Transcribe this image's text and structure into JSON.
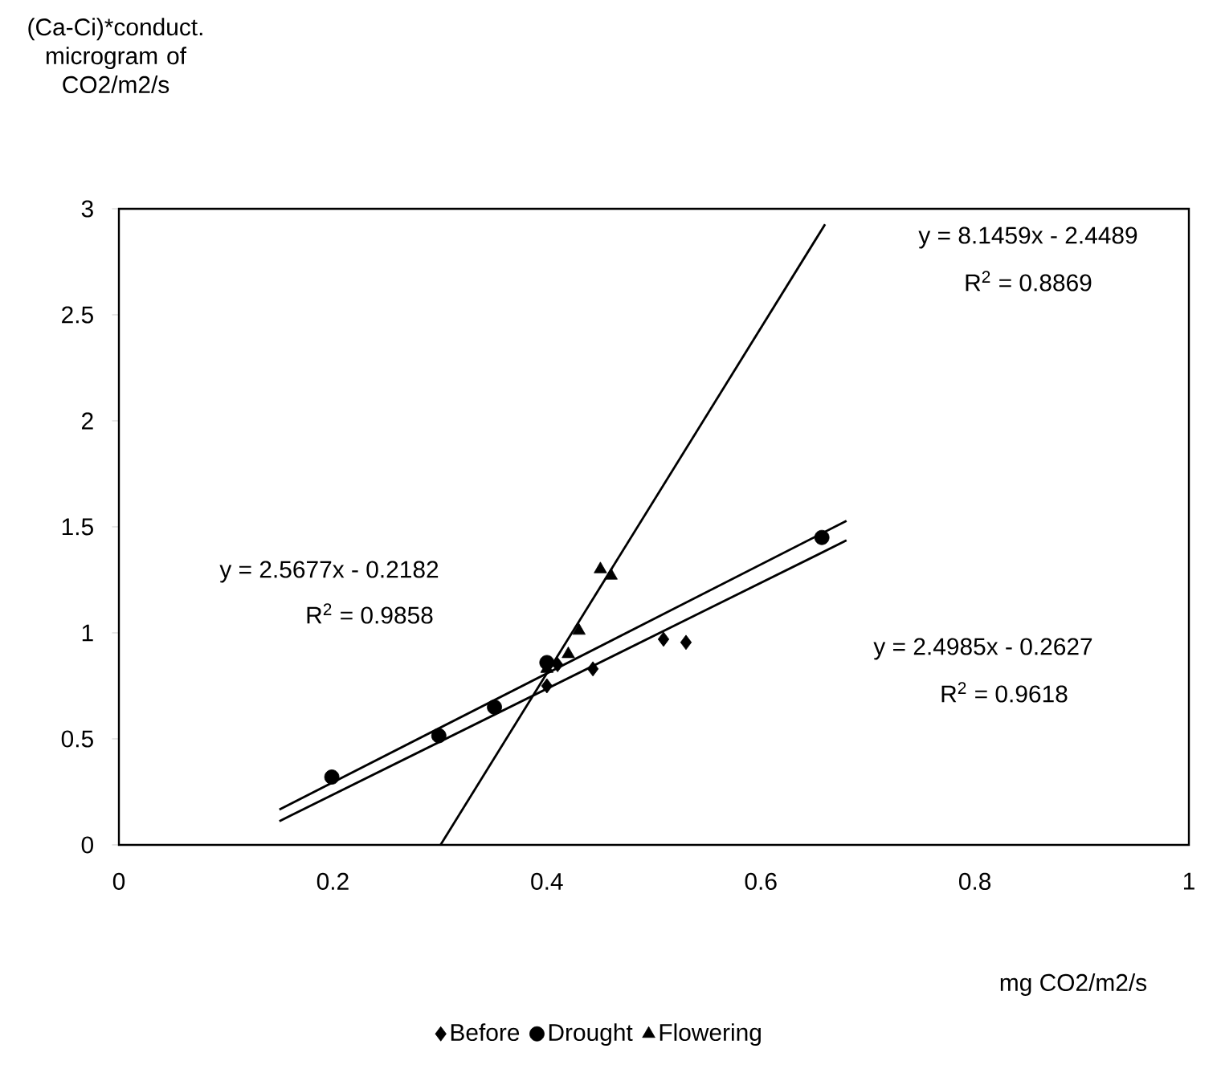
{
  "chart_data": {
    "type": "scatter",
    "ylabel": "(Ca-Ci)*conduct. microgram of CO2/m2/s",
    "xlabel": "mg CO2/m2/s",
    "xlim": [
      0,
      1
    ],
    "xticks": [
      0,
      0.2,
      0.4,
      0.6,
      0.8,
      1
    ],
    "ylim": [
      0,
      3
    ],
    "yticks": [
      0,
      0.5,
      1,
      1.5,
      2,
      2.5,
      3
    ],
    "legend": "bottom",
    "grid": false,
    "series": [
      {
        "name": "Before",
        "color": "#000000",
        "marker": "diamond",
        "x": [
          0.4,
          0.41,
          0.443,
          0.509,
          0.53
        ],
        "values": [
          0.75,
          0.85,
          0.83,
          0.97,
          0.955
        ]
      },
      {
        "name": "Drought",
        "color": "#000000",
        "marker": "circle",
        "x": [
          0.199,
          0.299,
          0.351,
          0.4,
          0.657
        ],
        "values": [
          0.32,
          0.515,
          0.65,
          0.86,
          1.45
        ]
      },
      {
        "name": "Flowering",
        "color": "#000000",
        "marker": "triangle",
        "x": [
          0.4,
          0.42,
          0.43,
          0.45,
          0.46
        ],
        "values": [
          0.83,
          0.9,
          1.01,
          1.3,
          1.27
        ]
      },
      {
        "type": "line",
        "color": "#000000",
        "x": [
          0.15,
          0.68
        ],
        "values": [
          0.112,
          1.436
        ]
      },
      {
        "type": "line",
        "color": "#000000",
        "x": [
          0.15,
          0.68
        ],
        "values": [
          0.167,
          1.528
        ]
      },
      {
        "type": "line",
        "color": "#000000",
        "x": [
          0.3006,
          0.66
        ],
        "values": [
          0,
          2.927
        ]
      }
    ],
    "annotations": [
      "y = 8.1459x - 2.4489",
      "R$^{2}$ = 0.8869",
      "y = 2.5677x - 0.2182",
      "R$^{2}$ = 0.9858",
      "y = 2.4985x - 0.2627",
      "R$^{2}$ = 0.9618"
    ]
  }
}
